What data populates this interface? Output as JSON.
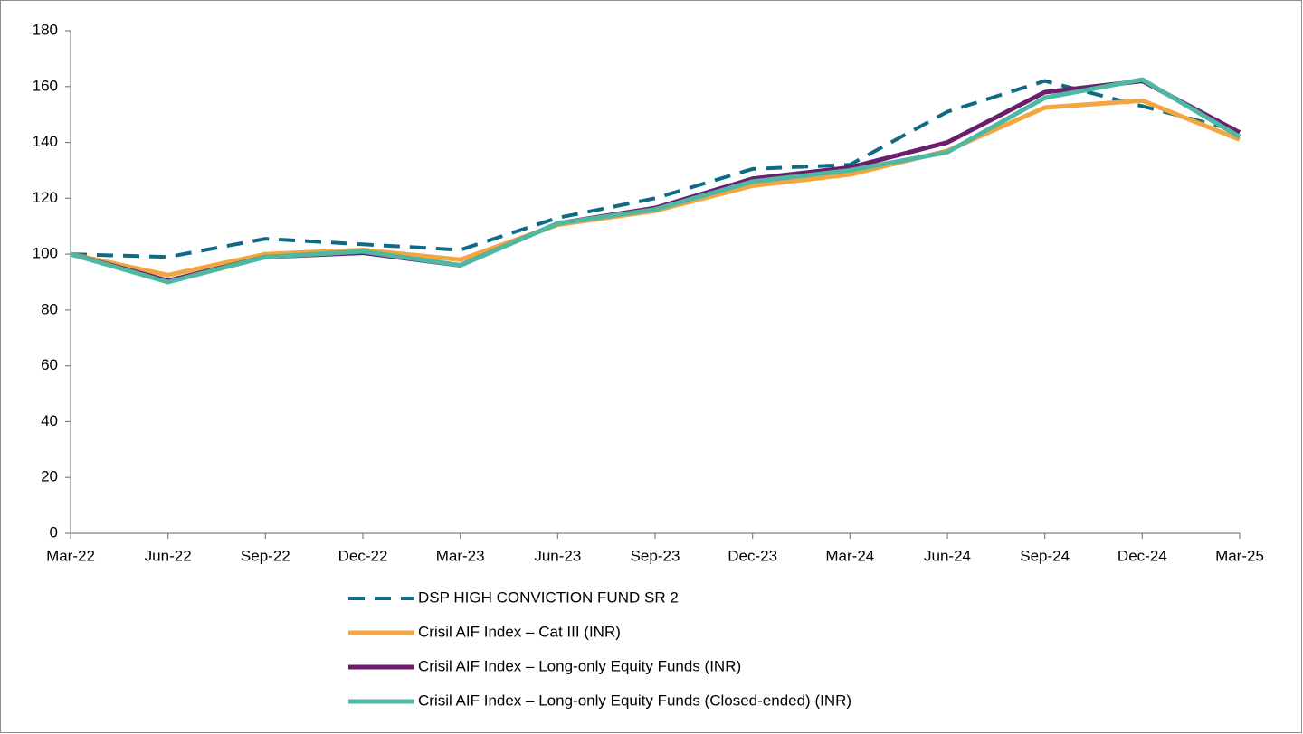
{
  "chart_data": {
    "type": "line",
    "categories": [
      "Mar-22",
      "Jun-22",
      "Sep-22",
      "Dec-22",
      "Mar-23",
      "Jun-23",
      "Sep-23",
      "Dec-23",
      "Mar-24",
      "Jun-24",
      "Sep-24",
      "Dec-24",
      "Mar-25"
    ],
    "series": [
      {
        "name": "DSP HIGH CONVICTION FUND SR 2",
        "color": "#0f6b85",
        "dashed": true,
        "values": [
          100,
          99,
          105.5,
          103.5,
          101.5,
          113,
          120,
          130.5,
          132,
          151,
          162,
          153,
          144
        ]
      },
      {
        "name": "Crisil AIF Index – Cat III (INR)",
        "color": "#f2a541",
        "dashed": false,
        "values": [
          100,
          92.5,
          100,
          101.5,
          98,
          110.5,
          115.5,
          124.5,
          128.5,
          137,
          152.5,
          155,
          141
        ]
      },
      {
        "name": "Crisil AIF Index – Long-only Equity Funds (INR)",
        "color": "#6b1e6e",
        "dashed": false,
        "values": [
          100,
          90.5,
          99,
          100.5,
          96,
          111,
          116.5,
          127,
          131,
          140,
          158,
          162,
          143.5
        ]
      },
      {
        "name": "Crisil AIF Index – Long-only Equity Funds (Closed-ended) (INR)",
        "color": "#4fb8a3",
        "dashed": false,
        "values": [
          100,
          90,
          99,
          101,
          96,
          111,
          116,
          126,
          130,
          136.5,
          156,
          162.5,
          142
        ]
      }
    ],
    "ylim": [
      0,
      180
    ],
    "yticks": [
      0,
      20,
      40,
      60,
      80,
      100,
      120,
      140,
      160,
      180
    ],
    "grid": false
  }
}
